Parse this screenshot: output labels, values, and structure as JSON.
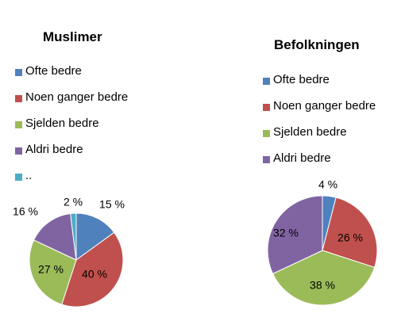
{
  "chart_data": [
    {
      "type": "pie",
      "title": "Muslimer",
      "legend_placement": "top-left",
      "categories": [
        "Ofte bedre",
        "Noen ganger bedre",
        "Sjelden bedre",
        "Aldri bedre",
        ".."
      ],
      "values": [
        15,
        40,
        27,
        16,
        2
      ],
      "labels": [
        "15 %",
        "40 %",
        "27 %",
        "16 %",
        "2 %"
      ],
      "colors": [
        "#4F81BD",
        "#C0504D",
        "#9BBB59",
        "#8064A2",
        "#4BACC6"
      ]
    },
    {
      "type": "pie",
      "title": "Befolkningen",
      "legend_placement": "top-right",
      "categories": [
        "Ofte bedre",
        "Noen ganger bedre",
        "Sjelden bedre",
        "Aldri bedre"
      ],
      "values": [
        4,
        26,
        38,
        32
      ],
      "labels": [
        "4 %",
        "26 %",
        "38 %",
        "32 %"
      ],
      "colors": [
        "#4F81BD",
        "#C0504D",
        "#9BBB59",
        "#8064A2"
      ]
    }
  ]
}
